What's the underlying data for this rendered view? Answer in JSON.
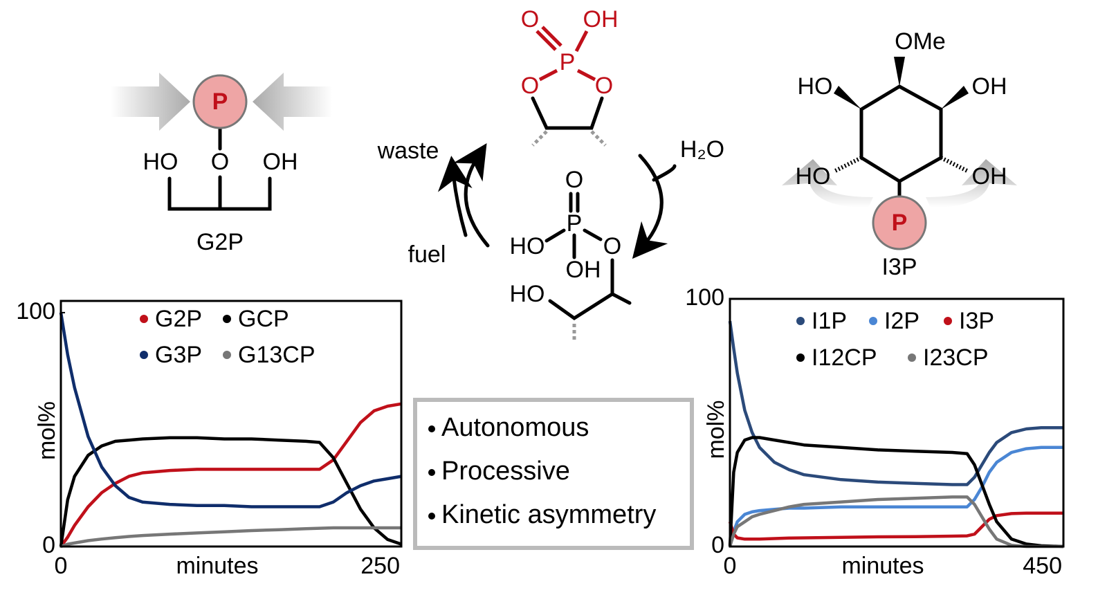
{
  "chart_data": [
    {
      "type": "line",
      "xlabel": "minutes",
      "ylabel": "mol%",
      "x": [
        0,
        5,
        10,
        20,
        30,
        40,
        50,
        60,
        80,
        100,
        120,
        140,
        160,
        180,
        190,
        200,
        210,
        220,
        230,
        240,
        250
      ],
      "xlim": [
        0,
        250
      ],
      "xticks": [
        0,
        250
      ],
      "ylim": [
        0,
        105
      ],
      "yticks": [
        0,
        100
      ],
      "series": [
        {
          "name": "G2P",
          "color": "#c0101a",
          "values": [
            0,
            4,
            9,
            17,
            23,
            27,
            30,
            31.5,
            32.5,
            33,
            33,
            33,
            33,
            33,
            33,
            37,
            45,
            53,
            58,
            60,
            61
          ]
        },
        {
          "name": "GCP",
          "color": "#000000",
          "values": [
            0,
            20,
            30,
            39,
            43,
            45,
            45.5,
            46,
            46.5,
            46.5,
            46,
            46,
            45.5,
            45,
            44.5,
            38,
            27,
            16,
            8,
            3,
            1
          ]
        },
        {
          "name": "G3P",
          "color": "#0f2d6b",
          "values": [
            100,
            82,
            68,
            47,
            34,
            26,
            21,
            19,
            18,
            17.5,
            17.5,
            17,
            17,
            17,
            17,
            19,
            23,
            26,
            28,
            29,
            30
          ]
        },
        {
          "name": "G13CP",
          "color": "#777777",
          "values": [
            0,
            1,
            1.5,
            2.5,
            3.2,
            3.8,
            4.3,
            4.7,
            5.3,
            5.8,
            6.3,
            6.8,
            7.2,
            7.6,
            7.8,
            8,
            8,
            8,
            8,
            8,
            8
          ]
        }
      ]
    },
    {
      "type": "line",
      "xlabel": "minutes",
      "ylabel": "mol%",
      "x": [
        0,
        5,
        10,
        20,
        30,
        40,
        60,
        80,
        100,
        150,
        200,
        250,
        300,
        320,
        330,
        340,
        350,
        360,
        380,
        400,
        420,
        450
      ],
      "xlim": [
        0,
        450
      ],
      "xticks": [
        0,
        450
      ],
      "ylim": [
        0,
        100
      ],
      "yticks": [
        0,
        100
      ],
      "series": [
        {
          "name": "I1P",
          "color": "#2b4a7a",
          "values": [
            91,
            80,
            70,
            55,
            46,
            40,
            34,
            31,
            29,
            27,
            26,
            25.5,
            25,
            25,
            28,
            33,
            38,
            42,
            46,
            47.5,
            48,
            48
          ]
        },
        {
          "name": "I2P",
          "color": "#4a86d4",
          "values": [
            0,
            6,
            10,
            13,
            14,
            14.5,
            15,
            15.5,
            15.5,
            16,
            16,
            16,
            16,
            16,
            19,
            24,
            30,
            34,
            38,
            39.5,
            40,
            40
          ]
        },
        {
          "name": "I3P",
          "color": "#c0101a",
          "values": [
            10,
            5,
            3.5,
            3,
            3,
            3,
            3.2,
            3.4,
            3.5,
            3.7,
            3.9,
            4,
            4.2,
            4.3,
            5,
            8,
            11,
            12.5,
            13.3,
            13.5,
            13.5,
            13.5
          ]
        },
        {
          "name": "I12CP",
          "color": "#000000",
          "values": [
            0,
            30,
            38,
            43,
            44,
            44,
            43,
            42,
            41,
            40,
            39,
            38.5,
            38,
            37.5,
            33,
            25,
            17,
            10,
            3,
            1,
            0.3,
            0
          ]
        },
        {
          "name": "I23CP",
          "color": "#777777",
          "values": [
            0,
            5,
            8,
            10,
            12,
            13,
            14.5,
            16,
            17,
            18,
            19,
            19.5,
            20,
            20,
            17,
            12,
            7,
            3,
            0.5,
            0,
            0,
            0
          ]
        }
      ]
    }
  ],
  "g2p_structure": {
    "phosphate": "P",
    "labels": [
      "HO",
      "O",
      "OH"
    ],
    "name": "G2P"
  },
  "cyclic_phosphate": {
    "labels": [
      "O",
      "OH",
      "P",
      "O",
      "O"
    ]
  },
  "cycle": {
    "waste": "waste",
    "fuel": "fuel",
    "water": "H₂O"
  },
  "hydrolyzed": {
    "labels": [
      "O",
      "P",
      "HO",
      "O",
      "OH",
      "HO"
    ]
  },
  "i3p_structure": {
    "labels": [
      "OMe",
      "HO",
      "OH",
      "HO",
      "OH"
    ],
    "phosphate": "P",
    "name": "I3P"
  },
  "features": [
    "Autonomous",
    "Processive",
    "Kinetic asymmetry"
  ]
}
